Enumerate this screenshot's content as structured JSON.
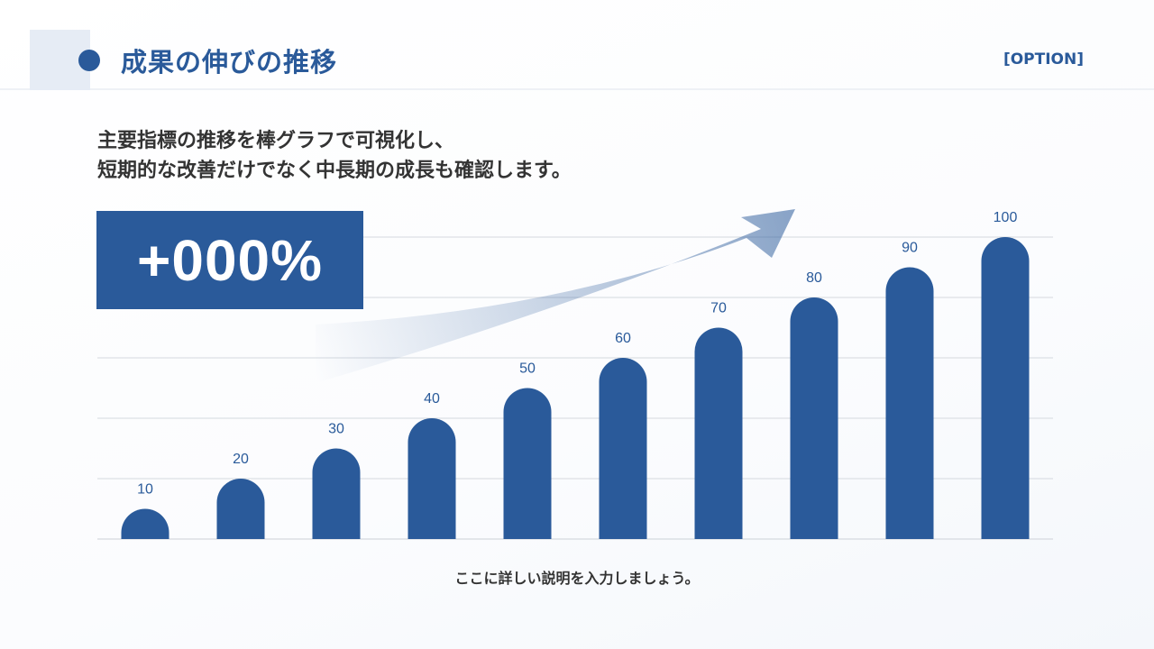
{
  "header": {
    "title": "成果の伸びの推移",
    "option_label": "[OPTION]"
  },
  "lead": {
    "line1": "主要指標の推移を棒グラフで可視化し、",
    "line2": "短期的な改善だけでなく中長期の成長も確認します。"
  },
  "kpi": {
    "value": "+000%"
  },
  "caption": "ここに詳しい説明を入力しましょう。",
  "colors": {
    "accent": "#2a5a9a",
    "corner": "#e6ecf5",
    "grid": "#d5d9df",
    "text": "#333333"
  },
  "chart_data": {
    "type": "bar",
    "categories": [
      "",
      "",
      "",
      "",
      "",
      "",
      "",
      "",
      "",
      ""
    ],
    "values": [
      10,
      20,
      30,
      40,
      50,
      60,
      70,
      80,
      90,
      100
    ],
    "data_labels": [
      "10",
      "20",
      "30",
      "40",
      "50",
      "60",
      "70",
      "80",
      "90",
      "100"
    ],
    "ylim": [
      0,
      100
    ],
    "grid": true,
    "trend_arrow": true
  }
}
